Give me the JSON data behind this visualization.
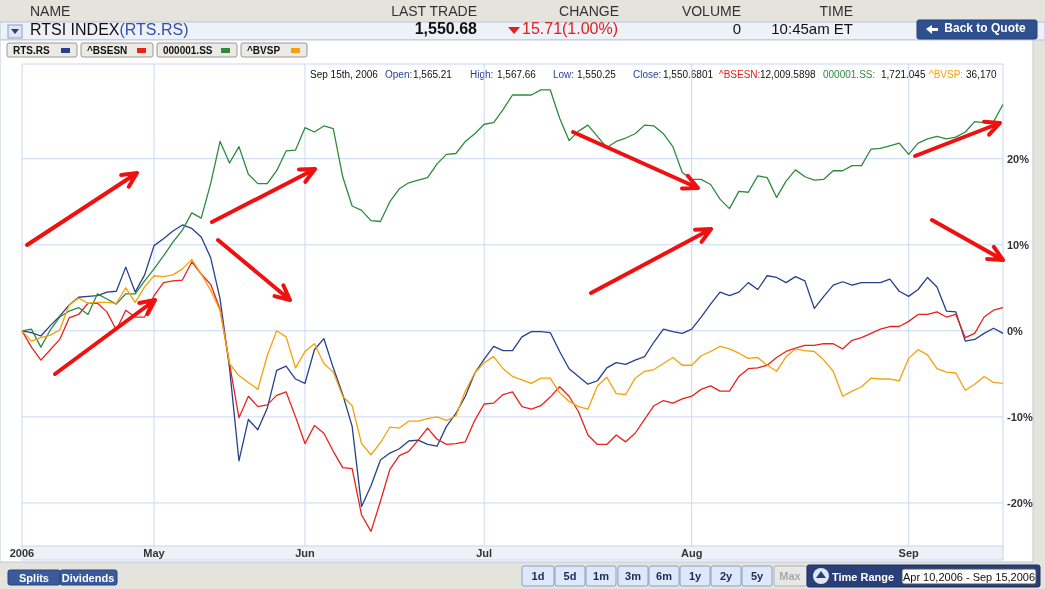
{
  "chart_data": {
    "type": "line",
    "title": "RTSI INDEX",
    "subtitle": "(RTS.RS)",
    "categories": [
      "2006",
      null,
      null,
      null,
      null,
      null,
      null,
      null,
      null,
      null,
      null,
      null,
      null,
      null,
      "May",
      null,
      null,
      null,
      null,
      null,
      null,
      null,
      null,
      null,
      null,
      null,
      null,
      null,
      null,
      null,
      "Jun",
      null,
      null,
      null,
      null,
      null,
      null,
      null,
      null,
      null,
      null,
      null,
      null,
      null,
      null,
      null,
      null,
      null,
      null,
      "Jul",
      null,
      null,
      null,
      null,
      null,
      null,
      null,
      null,
      null,
      null,
      null,
      null,
      null,
      null,
      null,
      null,
      null,
      null,
      null,
      null,
      null,
      "Aug",
      null,
      null,
      null,
      null,
      null,
      null,
      null,
      null,
      null,
      null,
      null,
      null,
      null,
      null,
      null,
      null,
      null,
      null,
      null,
      null,
      null,
      null,
      "Sep",
      null,
      null,
      null,
      null,
      null,
      null,
      null,
      null,
      null,
      null
    ],
    "series": [
      {
        "name": "RTS.RS",
        "color": "#27408b",
        "values": [
          0,
          -0.2,
          -0.6,
          0.6,
          1.7,
          3.0,
          3.9,
          4.0,
          4.1,
          4.5,
          4.6,
          7.4,
          4.5,
          6.5,
          9.9,
          10.7,
          11.6,
          12.3,
          11.9,
          10.9,
          8.5,
          3.7,
          -4.3,
          -15.1,
          -10.3,
          -11.5,
          -9.0,
          -4.6,
          -4.1,
          -5.6,
          -6.1,
          -2.2,
          -0.9,
          -4.3,
          -7.4,
          -11.1,
          -20.4,
          -18.0,
          -15.0,
          -14.2,
          -13.7,
          -12.8,
          -12.7,
          -13.2,
          -13.4,
          -11.1,
          -9.6,
          -7.6,
          -4.9,
          -3.3,
          -1.8,
          -2.3,
          -2.3,
          -0.7,
          -0.1,
          -0.1,
          -0.2,
          -2.4,
          -4.4,
          -5.3,
          -6.2,
          -5.8,
          -4.3,
          -3.7,
          -3.9,
          -3.4,
          -3.0,
          -1.3,
          0.2,
          -0.1,
          -0.3,
          0.2,
          1.6,
          3.1,
          4.5,
          4.1,
          4.5,
          5.6,
          4.8,
          6.4,
          6.2,
          5.6,
          6.3,
          5.8,
          2.6,
          4.0,
          5.3,
          5.7,
          5.3,
          5.6,
          5.6,
          5.6,
          6.0,
          4.6,
          4.0,
          4.8,
          6.2,
          5.1,
          2.3,
          2.2,
          -1.2,
          -1.0,
          -0.3,
          0.3,
          -0.3
        ]
      },
      {
        "name": "^BSESN",
        "color": "#e8231c",
        "values": [
          0,
          -1.9,
          -3.4,
          -2.2,
          -1.0,
          1.5,
          1.9,
          3.2,
          3.2,
          2.2,
          0.1,
          2.4,
          1.6,
          1.6,
          4.1,
          5.6,
          5.8,
          5.9,
          8.0,
          6.6,
          5.4,
          2.5,
          -3.8,
          -10.1,
          -7.6,
          -8.8,
          -8.6,
          -7.5,
          -7.1,
          -10.0,
          -13.1,
          -11.0,
          -11.9,
          -14.0,
          -15.9,
          -16.0,
          -21.4,
          -23.3,
          -19.8,
          -16.1,
          -14.5,
          -14.0,
          -12.7,
          -11.3,
          -12.6,
          -13.2,
          -13.1,
          -12.9,
          -10.4,
          -8.5,
          -8.4,
          -7.4,
          -7.1,
          -8.8,
          -9.1,
          -8.7,
          -7.7,
          -6.5,
          -7.6,
          -9.4,
          -12.1,
          -13.2,
          -13.2,
          -12.1,
          -12.9,
          -11.9,
          -10.3,
          -8.7,
          -8.1,
          -8.4,
          -7.9,
          -7.6,
          -6.8,
          -6.4,
          -7.0,
          -7.0,
          -5.3,
          -4.4,
          -4.3,
          -4.0,
          -3.1,
          -2.4,
          -2.0,
          -1.7,
          -1.7,
          -1.5,
          -1.5,
          -2.1,
          -1.1,
          -0.8,
          -0.3,
          0.2,
          0.5,
          0.5,
          1.1,
          1.9,
          1.9,
          2.2,
          1.6,
          1.9,
          -0.8,
          -0.3,
          1.6,
          2.4,
          2.7
        ]
      },
      {
        "name": "000001.SS",
        "color": "#2e8b3e",
        "values": [
          0,
          0.2,
          -1.9,
          0.1,
          1.6,
          2.3,
          2.7,
          1.9,
          4.3,
          3.7,
          3.1,
          4.3,
          4.3,
          5.8,
          7.2,
          8.7,
          10.3,
          11.7,
          13.7,
          13.1,
          17.1,
          22.0,
          19.5,
          21.4,
          18.2,
          17.1,
          17.1,
          18.6,
          20.9,
          21.0,
          23.6,
          23.1,
          23.8,
          23.5,
          17.9,
          14.5,
          14.0,
          12.8,
          12.7,
          15.0,
          16.5,
          17.2,
          17.5,
          17.8,
          19.4,
          20.5,
          20.6,
          22.0,
          22.9,
          24.0,
          24.2,
          25.7,
          27.4,
          27.4,
          27.4,
          28.0,
          28.0,
          24.7,
          22.1,
          23.2,
          23.9,
          22.6,
          21.3,
          22.0,
          22.4,
          22.9,
          23.9,
          23.8,
          22.9,
          21.4,
          18.4,
          17.6,
          17.6,
          17.0,
          15.3,
          14.2,
          16.2,
          16.1,
          18.0,
          17.8,
          15.5,
          17.4,
          18.7,
          17.9,
          17.5,
          17.6,
          18.6,
          18.6,
          19.2,
          19.2,
          21.1,
          21.2,
          21.5,
          21.8,
          20.5,
          21.8,
          22.3,
          22.6,
          22.3,
          22.5,
          23.1,
          24.3,
          24.2,
          24.3,
          26.3
        ]
      },
      {
        "name": "^BVSP",
        "color": "#f5a10a",
        "values": [
          0,
          -1.2,
          -0.8,
          -0.5,
          0.1,
          3.0,
          3.8,
          3.2,
          3.3,
          3.3,
          3.2,
          5.0,
          3.3,
          5.1,
          6.4,
          6.3,
          6.5,
          7.2,
          8.3,
          6.6,
          4.7,
          2.4,
          -3.8,
          -5.2,
          -6.0,
          -6.8,
          -2.9,
          0,
          -0.7,
          -4.3,
          -2.4,
          -1.5,
          -3.8,
          -4.8,
          -7.6,
          -8.7,
          -13.1,
          -14.4,
          -13.0,
          -11.2,
          -11.3,
          -10.5,
          -10.5,
          -10.2,
          -10.0,
          -10.4,
          -9.9,
          -7.0,
          -4.9,
          -3.7,
          -3.0,
          -4.4,
          -5.3,
          -5.7,
          -6.1,
          -5.5,
          -5.5,
          -7.2,
          -8.2,
          -8.8,
          -9.1,
          -6.4,
          -5.4,
          -7.3,
          -7.4,
          -5.5,
          -4.7,
          -4.5,
          -3.8,
          -3.1,
          -4.0,
          -4.0,
          -2.9,
          -2.4,
          -1.8,
          -2.1,
          -2.6,
          -3.2,
          -3.1,
          -4.0,
          -4.7,
          -3.0,
          -2.1,
          -2.3,
          -2.4,
          -3.4,
          -4.7,
          -7.6,
          -7.0,
          -6.5,
          -5.5,
          -5.6,
          -5.6,
          -5.8,
          -3.2,
          -2.2,
          -2.8,
          -4.4,
          -4.8,
          -4.9,
          -6.9,
          -6.2,
          -5.3,
          -6.0,
          -6.1
        ]
      }
    ],
    "ylim": [
      -25,
      31
    ],
    "yticks": [
      {
        "value": 20,
        "label": "20%"
      },
      {
        "value": 10,
        "label": "10%"
      },
      {
        "value": 0,
        "label": "0%"
      },
      {
        "value": -10,
        "label": "-10%"
      },
      {
        "value": -20,
        "label": "-20%"
      }
    ],
    "grid": true,
    "legend": "top left",
    "annotations": [
      "NAME",
      "LAST TRADE",
      "CHANGE",
      "VOLUME",
      "TIME",
      "1,550.68",
      "15.71(1.00%)",
      "0",
      "10:45am ET",
      "Back to Quote",
      "Sep 15th, 2006",
      "Open:",
      "1,565.21",
      "High:",
      "1,567.66",
      "Low:",
      "1,550.25",
      "Close:",
      "1,550.6801",
      "^BSESN:",
      "12,009.5898",
      "000001.SS:",
      "1,721.045",
      "^BVSP:",
      "36,170",
      "Splits",
      "Dividends",
      "1d",
      "5d",
      "1m",
      "3m",
      "6m",
      "1y",
      "2y",
      "5y",
      "Max",
      "Time Range",
      "Apr 10,2006 - Sep 15,2006"
    ]
  }
}
